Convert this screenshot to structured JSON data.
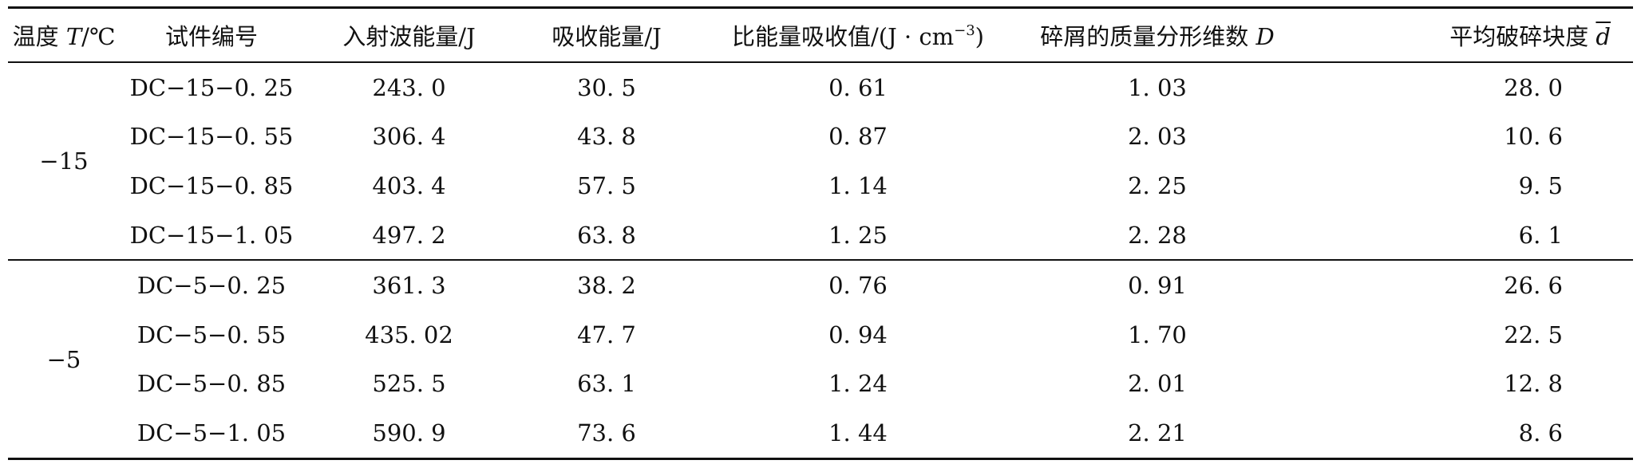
{
  "headers": {
    "temperature_prefix": "温度 ",
    "temperature_var": "T",
    "temperature_suffix": "/℃",
    "specimen": "试件编号",
    "incident": "入射波能量/J",
    "absorbed": "吸收能量/J",
    "specific_prefix": "比能量吸收值/(J · cm",
    "specific_sup": "−3",
    "specific_suffix": ")",
    "fractal_prefix": "碎屑的质量分形维数 ",
    "fractal_var": "D",
    "avg_prefix": "平均破碎块度 ",
    "avg_var": "d"
  },
  "groups": [
    {
      "temperature": "−15",
      "rows": [
        {
          "specimen": "DC−15−0. 25",
          "incident": "243. 0",
          "absorbed": "30. 5",
          "specific": "0. 61",
          "fractal": "1. 03",
          "avg": "28. 0"
        },
        {
          "specimen": "DC−15−0. 55",
          "incident": "306. 4",
          "absorbed": "43. 8",
          "specific": "0. 87",
          "fractal": "2. 03",
          "avg": "10. 6"
        },
        {
          "specimen": "DC−15−0. 85",
          "incident": "403. 4",
          "absorbed": "57. 5",
          "specific": "1. 14",
          "fractal": "2. 25",
          "avg": "9. 5"
        },
        {
          "specimen": "DC−15−1. 05",
          "incident": "497. 2",
          "absorbed": "63. 8",
          "specific": "1. 25",
          "fractal": "2. 28",
          "avg": "6. 1"
        }
      ]
    },
    {
      "temperature": "−5",
      "rows": [
        {
          "specimen": "DC−5−0. 25",
          "incident": "361. 3",
          "absorbed": "38. 2",
          "specific": "0. 76",
          "fractal": "0. 91",
          "avg": "26. 6"
        },
        {
          "specimen": "DC−5−0. 55",
          "incident": "435. 02",
          "absorbed": "47. 7",
          "specific": "0. 94",
          "fractal": "1. 70",
          "avg": "22. 5"
        },
        {
          "specimen": "DC−5−0. 85",
          "incident": "525. 5",
          "absorbed": "63. 1",
          "specific": "1. 24",
          "fractal": "2. 01",
          "avg": "12. 8"
        },
        {
          "specimen": "DC−5−1. 05",
          "incident": "590. 9",
          "absorbed": "73. 6",
          "specific": "1. 44",
          "fractal": "2. 21",
          "avg": "8. 6"
        }
      ]
    }
  ]
}
